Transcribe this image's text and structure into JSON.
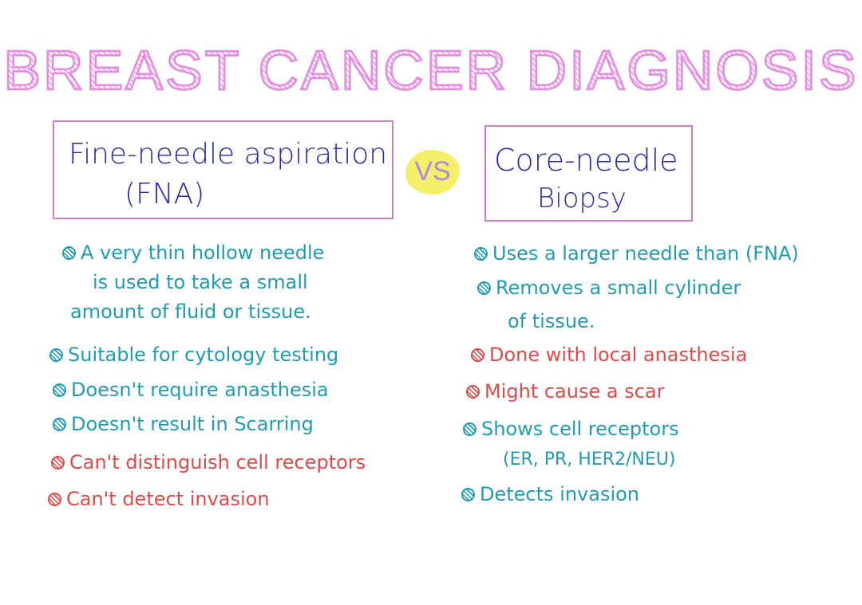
{
  "title": "BREAST CANCER DIAGNOSIS",
  "vs_label": "VS",
  "left": {
    "heading_line1": "Fine-needle aspiration",
    "heading_line2": "(FNA)",
    "items": [
      {
        "text": "A very thin hollow needle",
        "color": "teal"
      },
      {
        "text": "is used to take a small",
        "color": "teal"
      },
      {
        "text": "amount of fluid or tissue.",
        "color": "teal"
      },
      {
        "text": "Suitable for cytology testing",
        "color": "teal"
      },
      {
        "text": "Doesn't require anasthesia",
        "color": "teal"
      },
      {
        "text": "Doesn't result in Scarring",
        "color": "teal"
      },
      {
        "text": "Can't distinguish cell receptors",
        "color": "red"
      },
      {
        "text": "Can't detect invasion",
        "color": "red"
      }
    ]
  },
  "right": {
    "heading_line1": "Core-needle",
    "heading_line2": "Biopsy",
    "items": [
      {
        "text": "Uses a larger needle than (FNA)",
        "color": "teal"
      },
      {
        "text": "Removes a small cylinder",
        "color": "teal"
      },
      {
        "text": "of tissue.",
        "color": "teal"
      },
      {
        "text": "Done with local anasthesia",
        "color": "red"
      },
      {
        "text": "Might cause a scar",
        "color": "red"
      },
      {
        "text": "Shows cell receptors",
        "color": "teal"
      },
      {
        "text": "(ER, PR, HER2/NEU)",
        "color": "teal"
      },
      {
        "text": "Detects invasion",
        "color": "teal"
      }
    ]
  },
  "colors": {
    "title": "#e48be0",
    "box_border": "#c980c9",
    "heading": "#2a2aa6",
    "teal": "#1f9bb2",
    "red": "#dc4a4a",
    "vs_highlight": "#f5ef6a",
    "vs_text": "#b08adf"
  }
}
